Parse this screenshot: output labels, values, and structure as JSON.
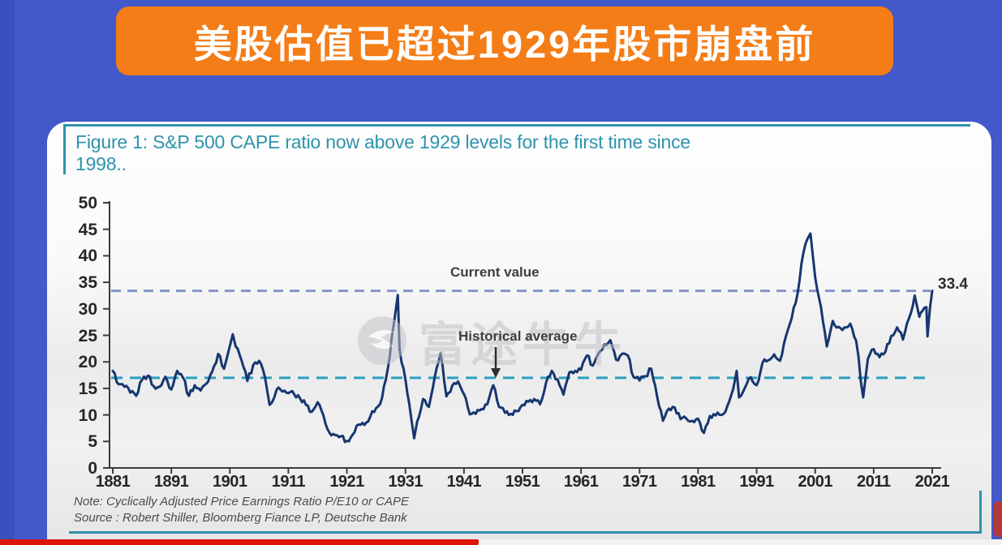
{
  "header": {
    "title": "美股估值已超过1929年股市崩盘前"
  },
  "figure": {
    "title_line1": "Figure 1: S&P 500 CAPE ratio now above 1929 levels for the first time since",
    "title_line2": "1998..",
    "note_line1": "Note: Cyclically Adjusted Price Earnings Ratio P/E10 or CAPE",
    "note_line2": "Source : Robert Shiller, Bloomberg Fiance LP, Deutsche Bank"
  },
  "watermark": {
    "text": "富途牛牛"
  },
  "annotations": {
    "current_value_label": "Current value",
    "historical_average_label": "Historical average",
    "current_value_number": "33.4"
  },
  "colors": {
    "background_blue": "#4159CB",
    "banner_orange": "#F47D18",
    "teal_accent": "#2F93A9",
    "line_navy": "#16366F",
    "current_dash": "#8495CB",
    "average_dash": "#2D9FC0",
    "axis": "#3C3C3C",
    "progress_red": "#DD1408"
  },
  "chart_data": {
    "type": "line",
    "title": "S&P 500 CAPE ratio 1881-2021",
    "xlabel": "",
    "ylabel": "",
    "xlim": [
      1881,
      2022.5
    ],
    "ylim": [
      0,
      50
    ],
    "x_ticks": [
      1881,
      1891,
      1901,
      1911,
      1921,
      1931,
      1941,
      1951,
      1961,
      1971,
      1981,
      1991,
      2001,
      2011,
      2021
    ],
    "y_ticks": [
      0,
      5,
      10,
      15,
      20,
      25,
      30,
      35,
      40,
      45,
      50
    ],
    "grid": false,
    "legend_position": "none",
    "current_value": 33.4,
    "historical_average": 17,
    "series": [
      {
        "name": "S&P 500 CAPE ratio",
        "points": [
          [
            1881,
            18.3
          ],
          [
            1882,
            15.8
          ],
          [
            1883,
            15.3
          ],
          [
            1884,
            14.2
          ],
          [
            1885,
            13.6
          ],
          [
            1886,
            16.6
          ],
          [
            1887,
            17.4
          ],
          [
            1888,
            15.4
          ],
          [
            1889,
            15.3
          ],
          [
            1890,
            17.2
          ],
          [
            1891,
            14.8
          ],
          [
            1892,
            18.3
          ],
          [
            1893,
            17.0
          ],
          [
            1894,
            13.6
          ],
          [
            1895,
            15.6
          ],
          [
            1896,
            14.6
          ],
          [
            1897,
            15.9
          ],
          [
            1898,
            18.2
          ],
          [
            1899,
            21.5
          ],
          [
            1900,
            18.7
          ],
          [
            1901,
            23.0
          ],
          [
            1901.5,
            25.2
          ],
          [
            1902,
            22.9
          ],
          [
            1903,
            20.3
          ],
          [
            1904,
            16.4
          ],
          [
            1905,
            19.4
          ],
          [
            1906,
            20.2
          ],
          [
            1907,
            17.1
          ],
          [
            1907.8,
            11.9
          ],
          [
            1909,
            14.8
          ],
          [
            1910,
            14.4
          ],
          [
            1911,
            14.1
          ],
          [
            1912,
            13.9
          ],
          [
            1913,
            13.1
          ],
          [
            1914,
            11.9
          ],
          [
            1915,
            10.6
          ],
          [
            1916,
            12.4
          ],
          [
            1917,
            9.9
          ],
          [
            1918,
            6.7
          ],
          [
            1919,
            6.2
          ],
          [
            1920,
            6.0
          ],
          [
            1921,
            5.1
          ],
          [
            1922,
            6.3
          ],
          [
            1923,
            8.2
          ],
          [
            1924,
            8.1
          ],
          [
            1925,
            9.7
          ],
          [
            1926,
            11.3
          ],
          [
            1927,
            13.2
          ],
          [
            1928,
            18.8
          ],
          [
            1929,
            27.0
          ],
          [
            1929.7,
            32.6
          ],
          [
            1930,
            22.3
          ],
          [
            1931,
            16.7
          ],
          [
            1932,
            9.3
          ],
          [
            1932.5,
            5.6
          ],
          [
            1933,
            8.7
          ],
          [
            1934,
            13.0
          ],
          [
            1935,
            11.5
          ],
          [
            1936,
            17.1
          ],
          [
            1937,
            21.6
          ],
          [
            1938,
            13.5
          ],
          [
            1939,
            15.5
          ],
          [
            1940,
            16.3
          ],
          [
            1941,
            13.9
          ],
          [
            1942,
            10.1
          ],
          [
            1943,
            10.2
          ],
          [
            1944,
            11.1
          ],
          [
            1945,
            12.0
          ],
          [
            1946,
            15.6
          ],
          [
            1947,
            11.5
          ],
          [
            1948,
            10.4
          ],
          [
            1949,
            10.2
          ],
          [
            1950,
            10.7
          ],
          [
            1951,
            11.9
          ],
          [
            1952,
            12.5
          ],
          [
            1953,
            13.0
          ],
          [
            1954,
            12.0
          ],
          [
            1955,
            16.0
          ],
          [
            1956,
            18.3
          ],
          [
            1957,
            16.7
          ],
          [
            1958,
            13.8
          ],
          [
            1959,
            18.0
          ],
          [
            1960,
            18.3
          ],
          [
            1961,
            18.5
          ],
          [
            1962,
            21.2
          ],
          [
            1963,
            19.3
          ],
          [
            1964,
            21.6
          ],
          [
            1965,
            23.3
          ],
          [
            1966,
            24.1
          ],
          [
            1967,
            20.4
          ],
          [
            1968,
            21.5
          ],
          [
            1969,
            21.2
          ],
          [
            1970,
            17.1
          ],
          [
            1971,
            16.5
          ],
          [
            1972,
            17.3
          ],
          [
            1973,
            18.7
          ],
          [
            1974,
            13.5
          ],
          [
            1975,
            8.9
          ],
          [
            1976,
            11.2
          ],
          [
            1977,
            11.4
          ],
          [
            1978,
            9.2
          ],
          [
            1979,
            9.3
          ],
          [
            1980,
            8.9
          ],
          [
            1981,
            9.3
          ],
          [
            1982,
            6.6
          ],
          [
            1983,
            9.8
          ],
          [
            1984,
            9.9
          ],
          [
            1985,
            10.0
          ],
          [
            1986,
            11.7
          ],
          [
            1987,
            14.9
          ],
          [
            1987.6,
            18.3
          ],
          [
            1988,
            13.3
          ],
          [
            1989,
            15.1
          ],
          [
            1990,
            17.1
          ],
          [
            1991,
            15.6
          ],
          [
            1992,
            19.8
          ],
          [
            1993,
            20.3
          ],
          [
            1994,
            21.4
          ],
          [
            1995,
            20.2
          ],
          [
            1996,
            24.8
          ],
          [
            1997,
            28.3
          ],
          [
            1998,
            32.9
          ],
          [
            1999,
            40.6
          ],
          [
            2000,
            43.8
          ],
          [
            2000.2,
            44.2
          ],
          [
            2001,
            36.0
          ],
          [
            2002,
            30.3
          ],
          [
            2003,
            22.9
          ],
          [
            2004,
            27.7
          ],
          [
            2005,
            26.6
          ],
          [
            2006,
            26.5
          ],
          [
            2007,
            27.2
          ],
          [
            2008,
            24.0
          ],
          [
            2009.2,
            13.3
          ],
          [
            2010,
            20.5
          ],
          [
            2011,
            22.4
          ],
          [
            2012,
            20.9
          ],
          [
            2013,
            21.9
          ],
          [
            2014,
            24.9
          ],
          [
            2015,
            26.5
          ],
          [
            2016,
            24.2
          ],
          [
            2017,
            28.1
          ],
          [
            2018,
            32.5
          ],
          [
            2018.8,
            28.5
          ],
          [
            2019,
            29.2
          ],
          [
            2020,
            30.3
          ],
          [
            2020.2,
            24.8
          ],
          [
            2020.6,
            30.0
          ],
          [
            2021,
            33.4
          ]
        ]
      }
    ]
  }
}
